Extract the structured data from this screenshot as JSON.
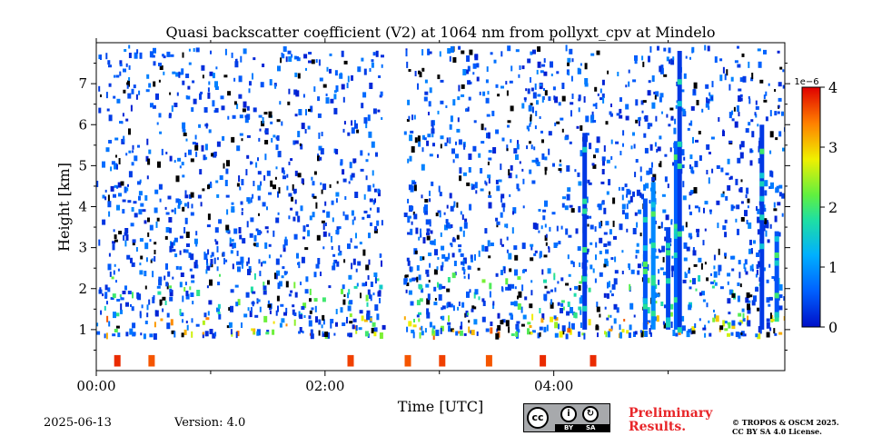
{
  "chart_data": {
    "type": "heatmap",
    "title": "Quasi backscatter coefficient (V2) at 1064 nm from pollyxt_cpv at Mindelo",
    "xlabel": "Time [UTC]",
    "ylabel": "Height [km]",
    "x_range_hours": [
      0,
      6.02
    ],
    "ylim_km": [
      0,
      8
    ],
    "x_ticks": [
      {
        "value": 0,
        "label": "00:00"
      },
      {
        "value": 2,
        "label": "02:00"
      },
      {
        "value": 4,
        "label": "04:00"
      }
    ],
    "x_minor_ticks": [
      1,
      3,
      5
    ],
    "y_ticks": [
      1,
      2,
      3,
      4,
      5,
      6,
      7
    ],
    "colorbar": {
      "range": [
        0,
        4
      ],
      "ticks": [
        0,
        1,
        2,
        3,
        4
      ],
      "scale_label": "1e−6",
      "colormap": "jet"
    },
    "data_gaps_hours": [
      [
        2.5,
        2.68
      ]
    ],
    "strong_columns": [
      {
        "time": 4.27,
        "top_km": 5.8,
        "bottom_km": 1.0,
        "value": 0.3
      },
      {
        "time": 4.8,
        "top_km": 4.2,
        "bottom_km": 1.0,
        "value": 0.5
      },
      {
        "time": 4.87,
        "top_km": 4.6,
        "bottom_km": 1.0,
        "value": 0.9
      },
      {
        "time": 5.0,
        "top_km": 3.5,
        "bottom_km": 1.0,
        "value": 0.4
      },
      {
        "time": 5.07,
        "top_km": 5.6,
        "bottom_km": 1.0,
        "value": 0.6
      },
      {
        "time": 5.1,
        "top_km": 7.8,
        "bottom_km": 1.0,
        "value": 0.3
      },
      {
        "time": 5.82,
        "top_km": 6.0,
        "bottom_km": 1.0,
        "value": 0.3
      },
      {
        "time": 5.95,
        "top_km": 3.4,
        "bottom_km": 1.3,
        "value": 0.5
      }
    ],
    "surface_features": [
      {
        "time": 0.18,
        "value": 3.8
      },
      {
        "time": 0.48,
        "value": 3.6
      },
      {
        "time": 2.22,
        "value": 3.7
      },
      {
        "time": 2.72,
        "value": 3.6
      },
      {
        "time": 3.02,
        "value": 3.7
      },
      {
        "time": 3.43,
        "value": 3.6
      },
      {
        "time": 3.9,
        "value": 3.8
      },
      {
        "time": 4.34,
        "value": 3.8
      }
    ]
  },
  "footer": {
    "date": "2025-06-13",
    "version": "Version: 4.0",
    "preliminary": [
      "Preliminary",
      "Results."
    ],
    "copyright": [
      "© TROPOS & OSCM 2025.",
      "CC BY SA 4.0 License."
    ],
    "license_badge": {
      "cc": "cc",
      "by": "BY",
      "sa": "SA"
    }
  },
  "colors": {
    "high": "#e8262a",
    "mid": "#39d12b",
    "low": "#0b66d6"
  }
}
